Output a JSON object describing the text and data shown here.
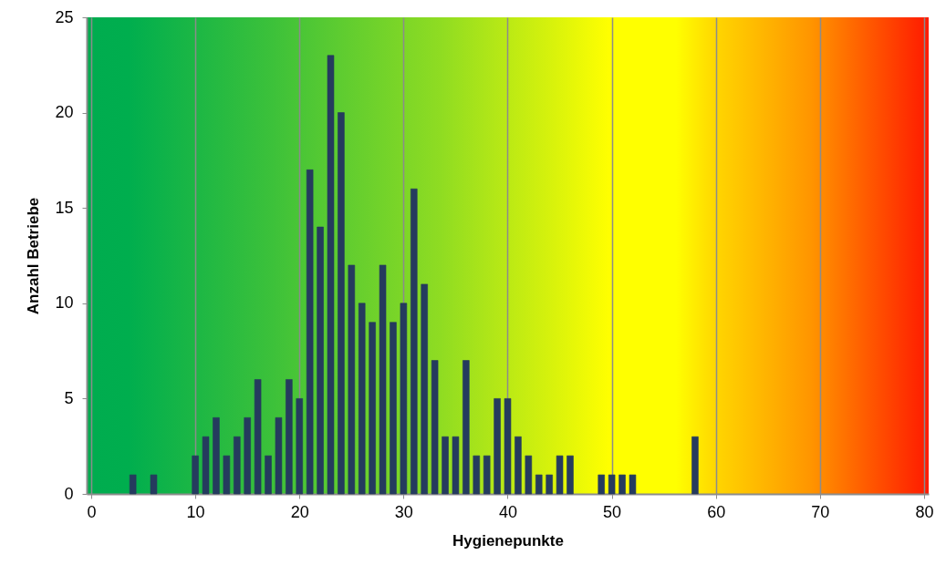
{
  "chart_data": {
    "type": "bar",
    "xlabel": "Hygienepunkte",
    "ylabel": "Anzahl Betriebe",
    "x": [
      4,
      6,
      10,
      11,
      12,
      13,
      14,
      15,
      16,
      17,
      18,
      19,
      20,
      21,
      22,
      23,
      24,
      25,
      26,
      27,
      28,
      29,
      30,
      31,
      32,
      33,
      34,
      35,
      36,
      37,
      38,
      39,
      40,
      41,
      42,
      43,
      44,
      45,
      46,
      49,
      50,
      51,
      52,
      58
    ],
    "values": [
      1,
      1,
      2,
      3,
      4,
      2,
      3,
      4,
      6,
      2,
      4,
      6,
      5,
      17,
      14,
      23,
      20,
      12,
      10,
      9,
      12,
      9,
      10,
      16,
      11,
      7,
      3,
      3,
      7,
      2,
      2,
      5,
      5,
      3,
      2,
      1,
      1,
      2,
      2,
      1,
      1,
      1,
      1,
      3
    ],
    "color": "#253b5e",
    "xlim": [
      0,
      80
    ],
    "xticks": [
      0,
      10,
      20,
      30,
      40,
      50,
      60,
      70,
      80
    ],
    "ylim": [
      0,
      25
    ],
    "yticks": [
      0,
      5,
      10,
      15,
      20,
      25
    ],
    "grid": "x"
  }
}
